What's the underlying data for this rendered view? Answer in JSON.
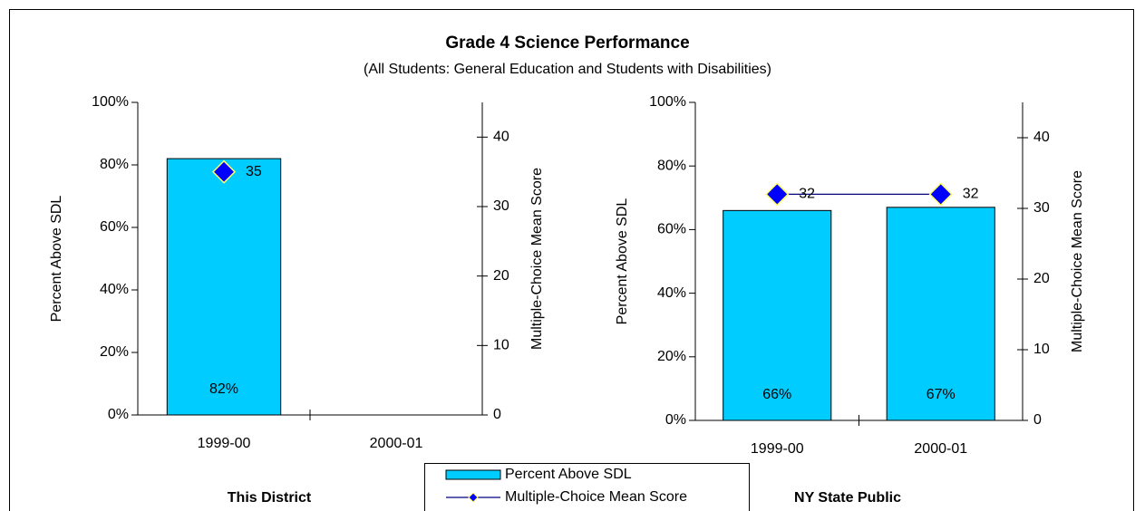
{
  "title": "Grade 4 Science Performance",
  "subtitle": "(All Students: General Education and Students with Disabilities)",
  "chart_data": [
    {
      "type": "bar",
      "label": "This District",
      "categories": [
        "1999-00",
        "2000-01"
      ],
      "ylabel": "Percent Above SDL",
      "y2label": "Multiple-Choice Mean Score",
      "ylim": [
        0,
        100
      ],
      "yticks": [
        {
          "value": 0,
          "label": "0%"
        },
        {
          "value": 20,
          "label": "20%"
        },
        {
          "value": 40,
          "label": "40%"
        },
        {
          "value": 60,
          "label": "60%"
        },
        {
          "value": 80,
          "label": "80%"
        },
        {
          "value": 100,
          "label": "100%"
        }
      ],
      "y2lim": [
        0,
        45
      ],
      "y2ticks": [
        0,
        10,
        20,
        30,
        40
      ],
      "series": [
        {
          "name": "Percent Above SDL",
          "type": "bar",
          "color": "#00ccff",
          "values": [
            82,
            null
          ],
          "value_labels": [
            "82%",
            null
          ]
        },
        {
          "name": "Multiple-Choice Mean Score",
          "type": "line",
          "axis": "y2",
          "color": "#000080",
          "marker_color": "#0000ff",
          "values": [
            35,
            null
          ]
        }
      ]
    },
    {
      "type": "bar",
      "label": "NY State Public",
      "categories": [
        "1999-00",
        "2000-01"
      ],
      "ylabel": "Percent Above SDL",
      "y2label": "Multiple-Choice Mean Score",
      "ylim": [
        0,
        100
      ],
      "yticks": [
        {
          "value": 0,
          "label": "0%"
        },
        {
          "value": 20,
          "label": "20%"
        },
        {
          "value": 40,
          "label": "40%"
        },
        {
          "value": 60,
          "label": "60%"
        },
        {
          "value": 80,
          "label": "80%"
        },
        {
          "value": 100,
          "label": "100%"
        }
      ],
      "y2lim": [
        0,
        45
      ],
      "y2ticks": [
        0,
        10,
        20,
        30,
        40
      ],
      "series": [
        {
          "type": "bar",
          "color": "#00ccff",
          "values": [
            66,
            67
          ],
          "value_labels": [
            "66%",
            "67%"
          ]
        },
        {
          "type": "line",
          "axis": "y2",
          "color": "#000080",
          "marker_color": "#0000ff",
          "values": [
            32,
            32
          ]
        }
      ]
    }
  ]
}
